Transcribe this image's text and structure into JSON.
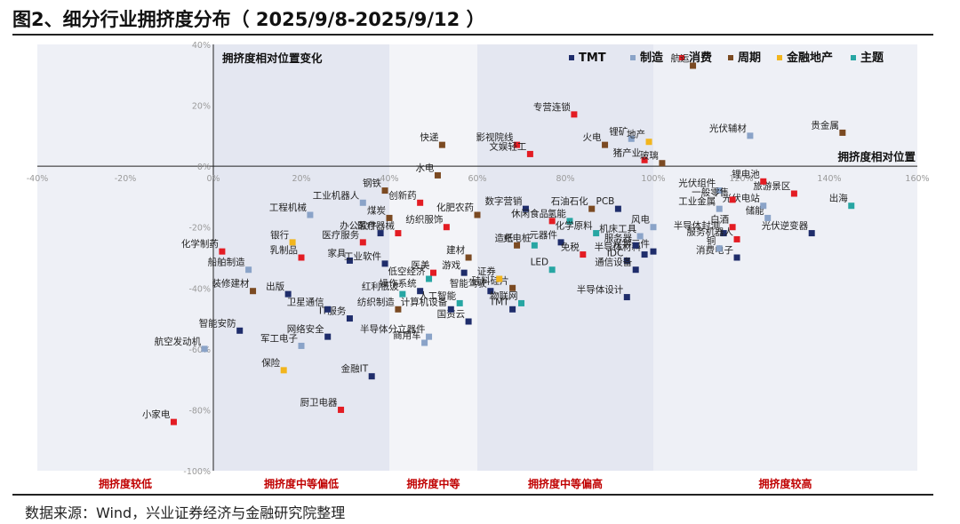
{
  "header": {
    "title": "图2、细分行业拥挤度分布（ 2025/9/8-2025/9/12 ）"
  },
  "footer": {
    "source": "数据来源：Wind，兴业证券经济与金融研究院整理"
  },
  "colors": {
    "TMT": "#1f2d6b",
    "制造": "#8aa3c8",
    "消费": "#e31c23",
    "周期": "#7b4a22",
    "金融地产": "#f2b51d",
    "主题": "#27a6a3"
  },
  "chart_data": {
    "type": "scatter",
    "title": "",
    "xlabel": "拥挤度相对位置",
    "ylabel": "拥挤度相对位置变化",
    "xlim": [
      -40,
      160
    ],
    "ylim": [
      -100,
      40
    ],
    "x_ticks": [
      "-40%",
      "-20%",
      "0%",
      "20%",
      "40%",
      "60%",
      "80%",
      "100%",
      "120%",
      "140%",
      "160%"
    ],
    "y_ticks": [
      "40%",
      "20%",
      "0%",
      "-20%",
      "-40%",
      "-60%",
      "-80%",
      "-100%"
    ],
    "legend_position": "top-right",
    "legend": [
      "TMT",
      "制造",
      "消费",
      "周期",
      "金融地产",
      "主题"
    ],
    "bands": [
      {
        "label": "拥挤度较低",
        "from": -40,
        "to": 0
      },
      {
        "label": "拥挤度中等偏低",
        "from": 0,
        "to": 40
      },
      {
        "label": "拥挤度中等",
        "from": 40,
        "to": 60
      },
      {
        "label": "拥挤度中等偏高",
        "from": 60,
        "to": 100
      },
      {
        "label": "拥挤度较高",
        "from": 100,
        "to": 160
      }
    ],
    "series": [
      {
        "name": "TMT",
        "points": [
          {
            "label": "TMT",
            "x": 68,
            "y": -47
          },
          {
            "label": "智能安防",
            "x": 6,
            "y": -54
          },
          {
            "label": "出版",
            "x": 17,
            "y": -42
          },
          {
            "label": "IT服务",
            "x": 31,
            "y": -50
          },
          {
            "label": "卫星通信",
            "x": 26,
            "y": -47
          },
          {
            "label": "网络安全",
            "x": 26,
            "y": -56
          },
          {
            "label": "金融IT",
            "x": 36,
            "y": -69
          },
          {
            "label": "家具",
            "x": 31,
            "y": -31
          },
          {
            "label": "办公软件",
            "x": 38,
            "y": -22
          },
          {
            "label": "工业软件",
            "x": 39,
            "y": -32
          },
          {
            "label": "操作系统",
            "x": 47,
            "y": -41
          },
          {
            "label": "国资云",
            "x": 58,
            "y": -51
          },
          {
            "label": "游戏",
            "x": 57,
            "y": -35
          },
          {
            "label": "智能驾驶",
            "x": 63,
            "y": -41
          },
          {
            "label": "计算机设备",
            "x": 54,
            "y": -47
          },
          {
            "label": "数字营销",
            "x": 71,
            "y": -14
          },
          {
            "label": "元器件",
            "x": 79,
            "y": -25
          },
          {
            "label": "半导体设计",
            "x": 94,
            "y": -43
          },
          {
            "label": "半导体材料",
            "x": 98,
            "y": -29
          },
          {
            "label": "PCB",
            "x": 92,
            "y": -14
          },
          {
            "label": "光学元件",
            "x": 100,
            "y": -28
          },
          {
            "label": "消费电子",
            "x": 119,
            "y": -30
          },
          {
            "label": "半导体封测",
            "x": 116,
            "y": -22
          },
          {
            "label": "光伏逆变器",
            "x": 136,
            "y": -22
          },
          {
            "label": "服务器",
            "x": 96,
            "y": -26
          },
          {
            "label": "IDC",
            "x": 94,
            "y": -31
          },
          {
            "label": "通信设备",
            "x": 96,
            "y": -34
          }
        ]
      },
      {
        "name": "制造",
        "points": [
          {
            "label": "船舶制造",
            "x": 8,
            "y": -34
          },
          {
            "label": "工程机械",
            "x": 22,
            "y": -16
          },
          {
            "label": "工业机器人",
            "x": 34,
            "y": -12
          },
          {
            "label": "航空发动机",
            "x": -2,
            "y": -60
          },
          {
            "label": "军工电子",
            "x": 20,
            "y": -59
          },
          {
            "label": "半导体分立器件",
            "x": 49,
            "y": -56
          },
          {
            "label": "商用车",
            "x": 48,
            "y": -58
          },
          {
            "label": "机床工具",
            "x": 97,
            "y": -23
          },
          {
            "label": "光伏组件",
            "x": 115,
            "y": -8
          },
          {
            "label": "光伏辅材",
            "x": 122,
            "y": 10
          },
          {
            "label": "锂矿",
            "x": 95,
            "y": 9
          },
          {
            "label": "风电",
            "x": 100,
            "y": -20
          },
          {
            "label": "工业金属",
            "x": 115,
            "y": -14
          },
          {
            "label": "储能",
            "x": 126,
            "y": -17
          },
          {
            "label": "光伏电站",
            "x": 125,
            "y": -13
          },
          {
            "label": "铜",
            "x": 115,
            "y": -27
          }
        ]
      },
      {
        "name": "消费",
        "points": [
          {
            "label": "化学制药",
            "x": 2,
            "y": -28
          },
          {
            "label": "小家电",
            "x": -9,
            "y": -84
          },
          {
            "label": "厨卫电器",
            "x": 29,
            "y": -80
          },
          {
            "label": "乳制品",
            "x": 20,
            "y": -30
          },
          {
            "label": "医疗服务",
            "x": 34,
            "y": -25
          },
          {
            "label": "创新药",
            "x": 47,
            "y": -12
          },
          {
            "label": "医疗器械",
            "x": 42,
            "y": -22
          },
          {
            "label": "纺织服饰",
            "x": 53,
            "y": -20
          },
          {
            "label": "影视院线",
            "x": 69,
            "y": 7
          },
          {
            "label": "文娱轻工",
            "x": 72,
            "y": 4
          },
          {
            "label": "专营连锁",
            "x": 82,
            "y": 17
          },
          {
            "label": "白酒",
            "x": 118,
            "y": -20
          },
          {
            "label": "旅游景区",
            "x": 132,
            "y": -9
          },
          {
            "label": "服务机器人",
            "x": 119,
            "y": -24
          },
          {
            "label": "免税",
            "x": 84,
            "y": -29
          },
          {
            "label": "锂电池",
            "x": 125,
            "y": -5
          },
          {
            "label": "猪产业",
            "x": 98,
            "y": 2
          },
          {
            "label": "医美",
            "x": 50,
            "y": -35
          },
          {
            "label": "休闲食品",
            "x": 77,
            "y": -18
          },
          {
            "label": "一般零售",
            "x": 118,
            "y": -11
          }
        ]
      },
      {
        "name": "周期",
        "points": [
          {
            "label": "装修建材",
            "x": 9,
            "y": -41
          },
          {
            "label": "钢铁",
            "x": 39,
            "y": -8
          },
          {
            "label": "煤炭",
            "x": 40,
            "y": -17
          },
          {
            "label": "快递",
            "x": 52,
            "y": 7
          },
          {
            "label": "水电",
            "x": 51,
            "y": -3
          },
          {
            "label": "化肥农药",
            "x": 60,
            "y": -16
          },
          {
            "label": "造纸",
            "x": 69,
            "y": -26
          },
          {
            "label": "石油石化",
            "x": 86,
            "y": -14
          },
          {
            "label": "火电",
            "x": 89,
            "y": 7
          },
          {
            "label": "贵金属",
            "x": 143,
            "y": 11
          },
          {
            "label": "玻璃",
            "x": 102,
            "y": 1
          },
          {
            "label": "航运",
            "x": 109,
            "y": 33
          },
          {
            "label": "纺织制造",
            "x": 42,
            "y": -47
          },
          {
            "label": "硅料硅片",
            "x": 68,
            "y": -40
          },
          {
            "label": "建材",
            "x": 58,
            "y": -30
          }
        ]
      },
      {
        "name": "金融地产",
        "points": [
          {
            "label": "保险",
            "x": 16,
            "y": -67
          },
          {
            "label": "银行",
            "x": 18,
            "y": -25
          },
          {
            "label": "地产",
            "x": 99,
            "y": 8
          },
          {
            "label": "证券",
            "x": 65,
            "y": -37
          }
        ]
      },
      {
        "name": "主题",
        "points": [
          {
            "label": "出海",
            "x": 145,
            "y": -13
          },
          {
            "label": "人工智能",
            "x": 56,
            "y": -45
          },
          {
            "label": "低空经济",
            "x": 49,
            "y": -37
          },
          {
            "label": "物联网",
            "x": 70,
            "y": -45
          },
          {
            "label": "LED",
            "x": 77,
            "y": -34
          },
          {
            "label": "充电桩",
            "x": 73,
            "y": -26
          },
          {
            "label": "氢能",
            "x": 81,
            "y": -18
          },
          {
            "label": "化学原料",
            "x": 87,
            "y": -22
          },
          {
            "label": "红利低波",
            "x": 43,
            "y": -42
          }
        ]
      }
    ]
  }
}
